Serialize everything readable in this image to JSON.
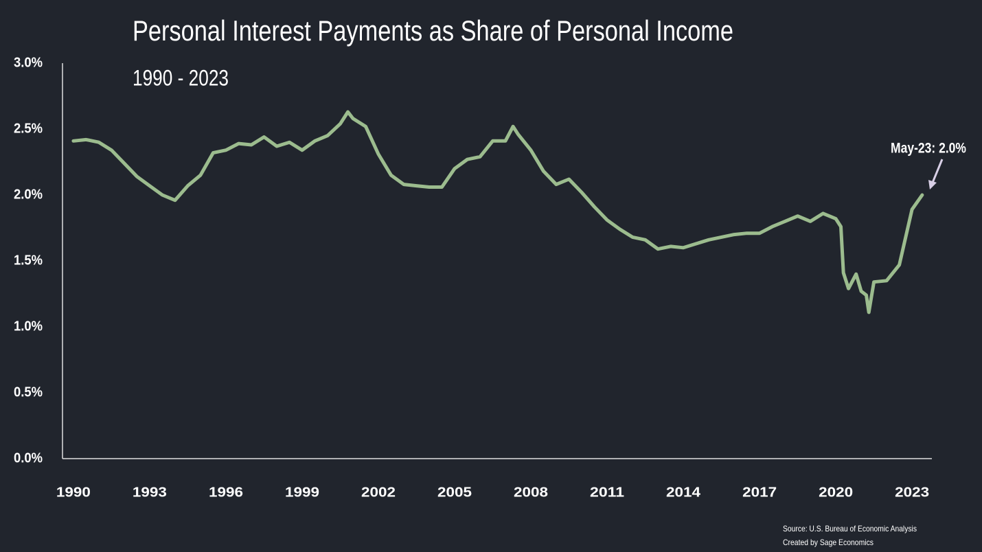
{
  "chart_data": {
    "type": "line",
    "title": "Personal Interest Payments as Share of Personal Income",
    "subtitle": "1990 - 2023",
    "annotation": "May-23: 2.0%",
    "source": "Source: U.S. Bureau of Economic Analysis",
    "credit": "Created by Sage Economics",
    "color": "#9cbc8e",
    "x": [
      1990,
      1990.5,
      1991,
      1991.5,
      1992,
      1992.5,
      1993,
      1993.5,
      1994,
      1994.5,
      1995,
      1995.5,
      1996,
      1996.5,
      1997,
      1997.5,
      1998,
      1998.5,
      1999,
      1999.5,
      2000,
      2000.5,
      2000.8,
      2001,
      2001.5,
      2002,
      2002.5,
      2003,
      2003.5,
      2004,
      2004.5,
      2005,
      2005.5,
      2006,
      2006.5,
      2007,
      2007.3,
      2007.5,
      2008,
      2008.5,
      2009,
      2009.5,
      2010,
      2010.5,
      2011,
      2011.5,
      2012,
      2012.5,
      2013,
      2013.5,
      2014,
      2014.5,
      2015,
      2015.5,
      2016,
      2016.5,
      2017,
      2017.5,
      2018,
      2018.5,
      2019,
      2019.5,
      2020,
      2020.2,
      2020.3,
      2020.5,
      2020.8,
      2021,
      2021.2,
      2021.3,
      2021.5,
      2022,
      2022.5,
      2023,
      2023.4
    ],
    "values": [
      2.41,
      2.42,
      2.4,
      2.34,
      2.24,
      2.14,
      2.07,
      2.0,
      1.96,
      2.07,
      2.15,
      2.32,
      2.34,
      2.39,
      2.38,
      2.44,
      2.37,
      2.4,
      2.34,
      2.41,
      2.45,
      2.54,
      2.63,
      2.58,
      2.52,
      2.31,
      2.15,
      2.08,
      2.07,
      2.06,
      2.06,
      2.2,
      2.27,
      2.29,
      2.41,
      2.41,
      2.52,
      2.46,
      2.34,
      2.18,
      2.08,
      2.12,
      2.02,
      1.91,
      1.81,
      1.74,
      1.68,
      1.66,
      1.59,
      1.61,
      1.6,
      1.63,
      1.66,
      1.68,
      1.7,
      1.71,
      1.71,
      1.76,
      1.8,
      1.84,
      1.8,
      1.86,
      1.82,
      1.76,
      1.41,
      1.29,
      1.4,
      1.27,
      1.24,
      1.11,
      1.34,
      1.35,
      1.47,
      1.89,
      2.0
    ],
    "xlim": [
      1989.57,
      2023.78
    ],
    "xticks": [
      1990,
      1993,
      1996,
      1999,
      2002,
      2005,
      2008,
      2011,
      2014,
      2017,
      2020,
      2023
    ],
    "ylim": [
      0,
      3.0
    ],
    "yticks": [
      {
        "value": 0,
        "label": "0.0%"
      },
      {
        "value": 0.5,
        "label": "0.5%"
      },
      {
        "value": 1.0,
        "label": "1.0%"
      },
      {
        "value": 1.5,
        "label": "1.5%"
      },
      {
        "value": 2.0,
        "label": "2.0%"
      },
      {
        "value": 2.5,
        "label": "2.5%"
      },
      {
        "value": 3.0,
        "label": "3.0%"
      }
    ],
    "grid": false
  }
}
